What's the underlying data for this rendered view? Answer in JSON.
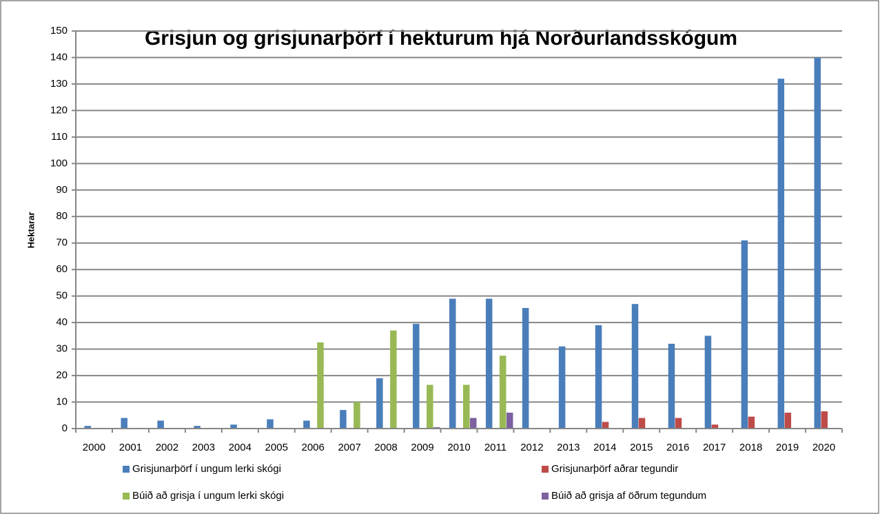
{
  "chart_data": {
    "type": "bar",
    "title": "Grisjun og grisjunarþörf  í hekturum hjá Norðurlandsskógum",
    "y_label": "Hektarar",
    "categories": [
      "2000",
      "2001",
      "2002",
      "2003",
      "2004",
      "2005",
      "2006",
      "2007",
      "2008",
      "2009",
      "2010",
      "2011",
      "2012",
      "2013",
      "2014",
      "2015",
      "2016",
      "2017",
      "2018",
      "2019",
      "2020"
    ],
    "series": [
      {
        "name": "Grisjunarþörf í ungum lerki skógi",
        "color": "#4a7ebb",
        "values": [
          1,
          4,
          3,
          1,
          1.5,
          3.5,
          3,
          7,
          19,
          39.5,
          49,
          49,
          45.5,
          31,
          39,
          47,
          32,
          35,
          71,
          132,
          140
        ]
      },
      {
        "name": "Grisjunarþörf aðrar tegundir",
        "color": "#be4b48",
        "values": [
          0,
          0,
          0,
          0,
          0,
          0,
          0,
          0,
          0,
          0,
          0,
          0,
          0,
          0,
          2.5,
          4,
          4,
          1.5,
          4.5,
          6,
          6.5
        ]
      },
      {
        "name": "Búið að grisja í ungum lerki skógi",
        "color": "#98b954",
        "values": [
          0,
          0,
          0,
          0,
          0,
          0,
          32.5,
          10,
          37,
          16.5,
          16.5,
          27.5,
          0,
          0,
          0,
          0,
          0,
          0,
          0,
          0,
          0
        ]
      },
      {
        "name": "Búið að grisja af öðrum tegundum",
        "color": "#7d60a0",
        "values": [
          0,
          0,
          0,
          0,
          0,
          0,
          0,
          0,
          0,
          0.5,
          4,
          6,
          0,
          0,
          0,
          0,
          0,
          0,
          0,
          0,
          0
        ]
      }
    ],
    "ylim": [
      0,
      150
    ],
    "yticks": [
      0,
      10,
      20,
      30,
      40,
      50,
      60,
      70,
      80,
      90,
      100,
      110,
      120,
      130,
      140,
      150
    ],
    "grid": true
  }
}
